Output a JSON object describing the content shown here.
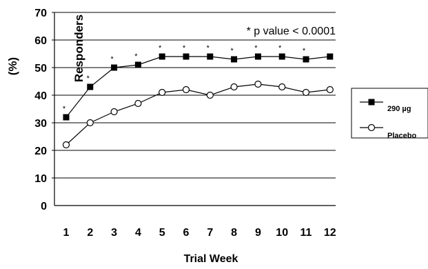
{
  "chart_data": {
    "type": "line",
    "title": "",
    "xlabel": "Trial Week",
    "ylabel_lines": [
      "(%)",
      "Responders"
    ],
    "categories": [
      "1",
      "2",
      "3",
      "4",
      "5",
      "6",
      "7",
      "8",
      "9",
      "10",
      "11",
      "12"
    ],
    "ylim": [
      0,
      70
    ],
    "yticks": [
      "0",
      "10",
      "20",
      "30",
      "40",
      "50",
      "60",
      "70"
    ],
    "grid": "horizontal",
    "legend_position": "right",
    "annotation": "* p value < 0.0001",
    "significance_marker": "*",
    "significant_weeks": [
      "1",
      "2",
      "3",
      "4",
      "5",
      "6",
      "7",
      "8",
      "9",
      "10",
      "11"
    ],
    "series": [
      {
        "name": "290 µg",
        "marker": "filled-square",
        "color": "#000000",
        "values": [
          32,
          43,
          50,
          51,
          54,
          54,
          54,
          53,
          54,
          54,
          53,
          54
        ]
      },
      {
        "name": "Placebo",
        "marker": "open-circle",
        "color": "#000000",
        "values": [
          22,
          30,
          34,
          37,
          41,
          42,
          40,
          43,
          44,
          43,
          41,
          42
        ]
      }
    ]
  }
}
